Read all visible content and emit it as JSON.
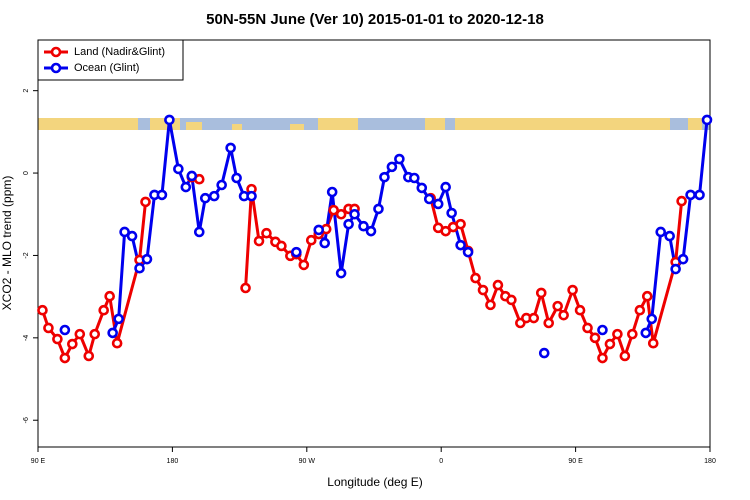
{
  "chart_data": {
    "type": "line",
    "title": "50N-55N June (Ver 10)   2015-01-01 to 2020-12-18",
    "x_label": "Longitude (deg E)",
    "y_label": "XCO2 - MLO trend (ppm)",
    "xlim": [
      90,
      540
    ],
    "xticks": [
      {
        "value": 90,
        "label": "90 E"
      },
      180,
      {
        "value": 270,
        "label": "90 W"
      },
      {
        "value": 360,
        "label": "0"
      },
      {
        "value": 450,
        "label": "90 E"
      },
      {
        "value": 540,
        "label": "180"
      }
    ],
    "ylim": [
      -6.65,
      3.23
    ],
    "yticks": [
      -6,
      -4,
      -2,
      0,
      2
    ],
    "legend": "top-left",
    "series": [
      {
        "name": "Land (Nadir&Glint)",
        "color": "#ee0000",
        "x": [
          93,
          97,
          103,
          108,
          113,
          118,
          124,
          128,
          134,
          138,
          143,
          158,
          162,
          null,
          193,
          198,
          null,
          229,
          233,
          238,
          243,
          249,
          253,
          259,
          263,
          268,
          273,
          278,
          283,
          288,
          293,
          298,
          302,
          null,
          353,
          358,
          363,
          368,
          373,
          378,
          383,
          388,
          393,
          398,
          403,
          407,
          413,
          417,
          422,
          427,
          432,
          438,
          442,
          448,
          453,
          458,
          463,
          468,
          473,
          478,
          483,
          488,
          493,
          498,
          502,
          517,
          521
        ],
        "values": [
          -3.33,
          -3.76,
          -4.03,
          -4.49,
          -4.15,
          -3.91,
          -4.44,
          -3.91,
          -3.33,
          -2.99,
          -4.13,
          -2.11,
          -0.7,
          null,
          -0.1,
          -0.15,
          null,
          -2.79,
          -0.39,
          -1.65,
          -1.46,
          -1.67,
          -1.77,
          -2.01,
          -1.97,
          -2.23,
          -1.63,
          -1.48,
          -1.36,
          -0.9,
          -1.0,
          -0.87,
          -0.87,
          null,
          -0.61,
          -1.33,
          -1.41,
          -1.31,
          -1.24,
          -1.89,
          -2.55,
          -2.84,
          -3.2,
          -2.72,
          -2.99,
          -3.08,
          -3.64,
          -3.52,
          -3.52,
          -2.91,
          -3.64,
          -3.23,
          -3.45,
          -2.84,
          -3.33,
          -3.76,
          -4.0,
          -4.49,
          -4.15,
          -3.91,
          -4.44,
          -3.91,
          -3.33,
          -2.99,
          -4.13,
          -2.16,
          -0.68
        ]
      },
      {
        "name": "Ocean (Glint)",
        "color": "#0000ee",
        "x": [
          108,
          null,
          140,
          144,
          148,
          153,
          158,
          163,
          168,
          173,
          178,
          184,
          189,
          193,
          198,
          202,
          208,
          213,
          219,
          223,
          228,
          233,
          null,
          263,
          null,
          278,
          282,
          287,
          293,
          298,
          302,
          308,
          313,
          318,
          322,
          327,
          332,
          338,
          342,
          347,
          352,
          358,
          363,
          367,
          373,
          378,
          null,
          429,
          null,
          468,
          null,
          497,
          501,
          507,
          513,
          517,
          522,
          527,
          533,
          538
        ],
        "values": [
          -3.81,
          null,
          -3.88,
          -3.54,
          -1.43,
          -1.53,
          -2.31,
          -2.09,
          -0.53,
          -0.53,
          1.29,
          0.1,
          -0.34,
          -0.07,
          -1.43,
          -0.61,
          -0.56,
          -0.29,
          0.61,
          -0.12,
          -0.56,
          -0.56,
          null,
          -1.92,
          null,
          -1.38,
          -1.7,
          -0.46,
          -2.43,
          -1.24,
          -1.0,
          -1.29,
          -1.41,
          -0.87,
          -0.1,
          0.15,
          0.34,
          -0.1,
          -0.12,
          -0.36,
          -0.63,
          -0.75,
          -0.34,
          -0.97,
          -1.75,
          -1.92,
          null,
          -4.37,
          null,
          -3.81,
          null,
          -3.88,
          -3.54,
          -1.43,
          -1.53,
          -2.33,
          -2.09,
          -0.53,
          -0.53,
          1.29
        ]
      }
    ]
  }
}
